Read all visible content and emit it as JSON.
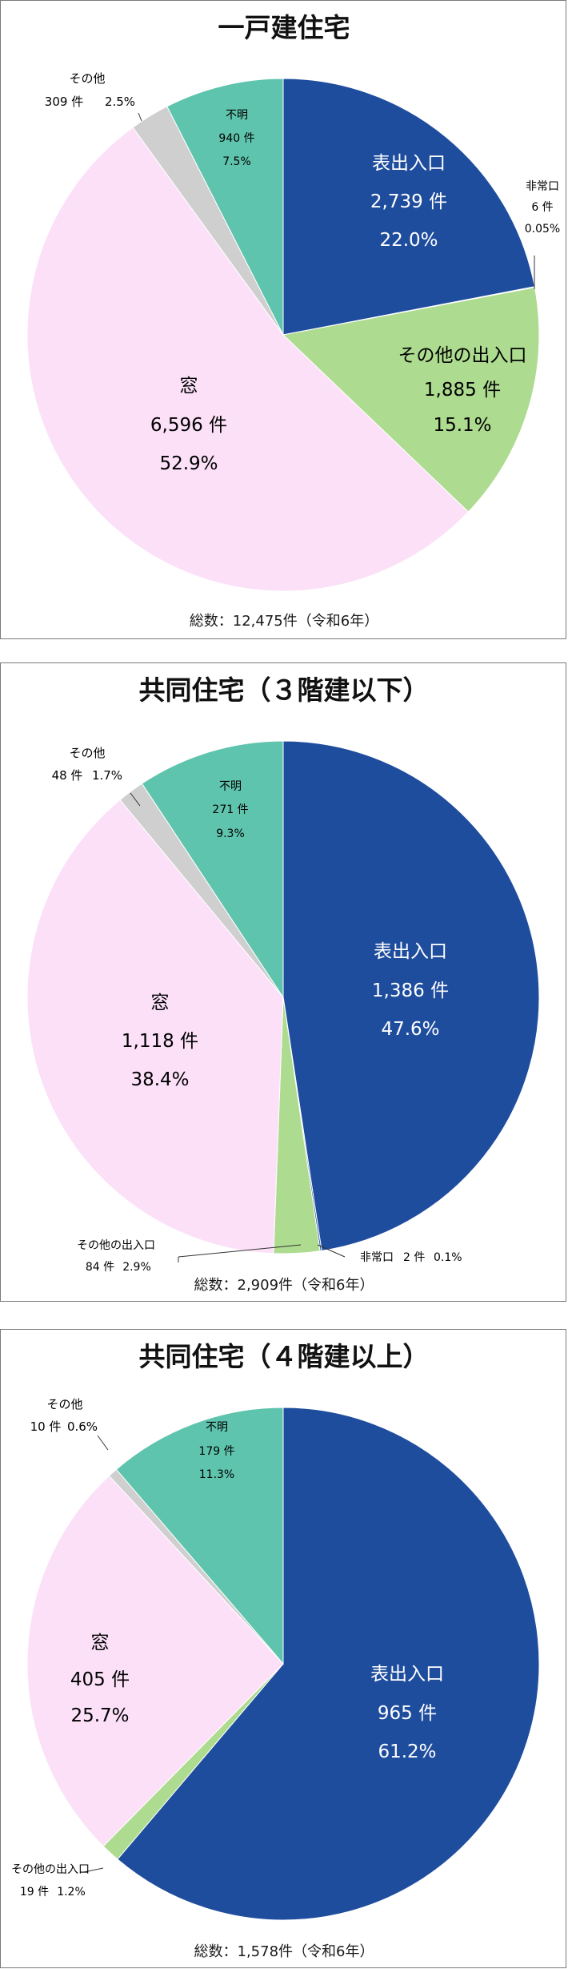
{
  "chart_data": [
    {
      "type": "pie",
      "title": "一戸建住宅",
      "total_label": "総数：12,475件（令和6年）",
      "slices": [
        {
          "name": "表出入口",
          "count_label": "2,739 件",
          "percent_label": "22.0%",
          "value": 22.0,
          "color": "#1f4d9e"
        },
        {
          "name": "非常口",
          "count_label": "6 件",
          "percent_label": "0.05%",
          "value": 0.05,
          "color": "#1f4d9e"
        },
        {
          "name": "その他の出入口",
          "count_label": "1,885 件",
          "percent_label": "15.1%",
          "value": 15.1,
          "color": "#addb8f"
        },
        {
          "name": "窓",
          "count_label": "6,596 件",
          "percent_label": "52.9%",
          "value": 52.9,
          "color": "#fbe0f8"
        },
        {
          "name": "その他",
          "count_label": "309 件",
          "percent_label": "2.5%",
          "value": 2.5,
          "color": "#cfcfcf"
        },
        {
          "name": "不明",
          "count_label": "940 件",
          "percent_label": "7.5%",
          "value": 7.5,
          "color": "#5fc4ad"
        }
      ]
    },
    {
      "type": "pie",
      "title": "共同住宅（３階建以下）",
      "total_label": "総数：2,909件（令和6年）",
      "slices": [
        {
          "name": "表出入口",
          "count_label": "1,386 件",
          "percent_label": "47.6%",
          "value": 47.6,
          "color": "#1f4d9e"
        },
        {
          "name": "非常口",
          "count_label": "2 件",
          "percent_label": "0.1%",
          "value": 0.1,
          "color": "#1f4d9e"
        },
        {
          "name": "その他の出入口",
          "count_label": "84 件",
          "percent_label": "2.9%",
          "value": 2.9,
          "color": "#addb8f"
        },
        {
          "name": "窓",
          "count_label": "1,118 件",
          "percent_label": "38.4%",
          "value": 38.4,
          "color": "#fbe0f8"
        },
        {
          "name": "その他",
          "count_label": "48 件",
          "percent_label": "1.7%",
          "value": 1.7,
          "color": "#cfcfcf"
        },
        {
          "name": "不明",
          "count_label": "271 件",
          "percent_label": "9.3%",
          "value": 9.3,
          "color": "#5fc4ad"
        }
      ]
    },
    {
      "type": "pie",
      "title": "共同住宅（４階建以上）",
      "total_label": "総数：1,578件（令和6年）",
      "slices": [
        {
          "name": "表出入口",
          "count_label": "965 件",
          "percent_label": "61.2%",
          "value": 61.2,
          "color": "#1f4d9e"
        },
        {
          "name": "その他の出入口",
          "count_label": "19 件",
          "percent_label": "1.2%",
          "value": 1.2,
          "color": "#addb8f"
        },
        {
          "name": "窓",
          "count_label": "405 件",
          "percent_label": "25.7%",
          "value": 25.7,
          "color": "#fbe0f8"
        },
        {
          "name": "その他",
          "count_label": "10 件",
          "percent_label": "0.6%",
          "value": 0.6,
          "color": "#cfcfcf"
        },
        {
          "name": "不明",
          "count_label": "179 件",
          "percent_label": "11.3%",
          "value": 11.3,
          "color": "#5fc4ad"
        }
      ]
    }
  ]
}
